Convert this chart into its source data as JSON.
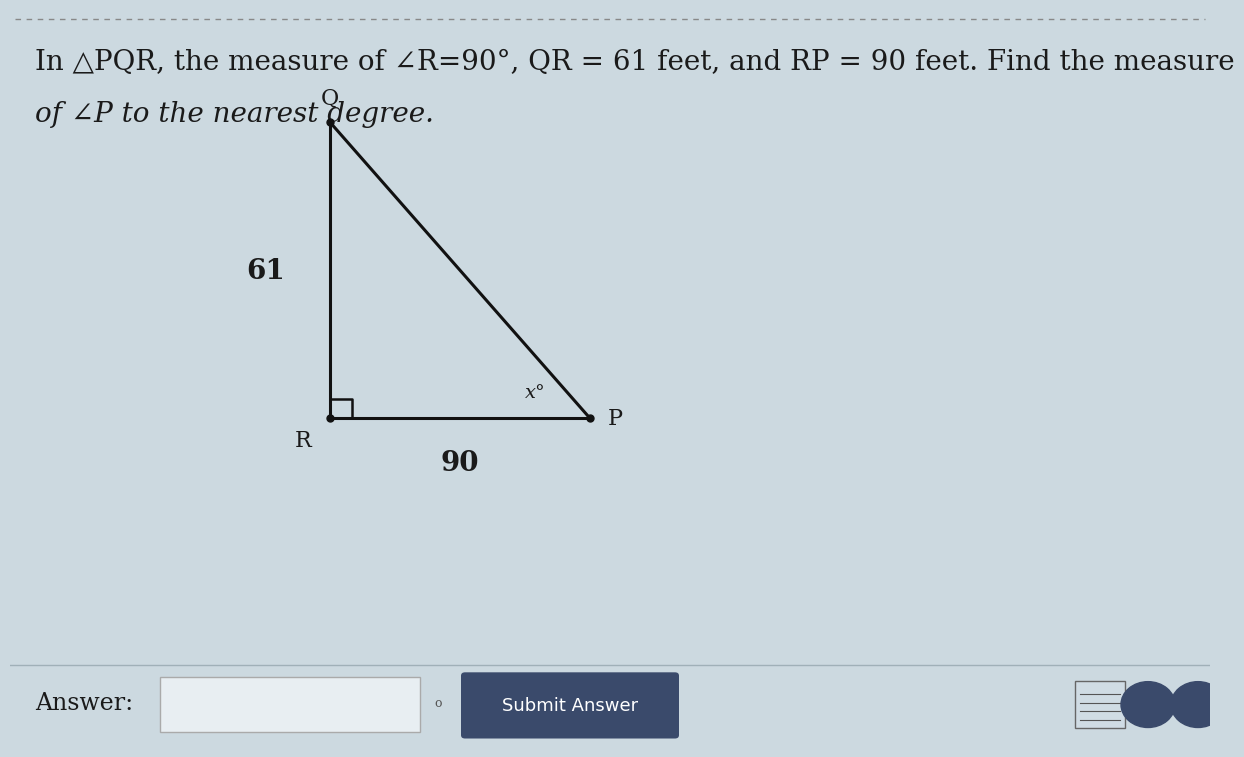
{
  "title_line1": "In △PQR, the measure of ∠R=90°, QR = 61 feet, and RP = 90 feet. Find the measure",
  "title_line2": "of ∠P to the nearest degree.",
  "bg_color": "#ccd9e0",
  "bottom_bg": "#c0cfd8",
  "triangle_R": [
    3.2,
    2.8
  ],
  "triangle_Q": [
    3.2,
    6.2
  ],
  "triangle_P": [
    5.8,
    2.8
  ],
  "label_R": "R",
  "label_Q": "Q",
  "label_P": "P",
  "side_QR": "61",
  "side_RP": "90",
  "angle_label": "x°",
  "answer_label": "Answer:",
  "submit_label": "Submit Answer",
  "line_color": "#111111",
  "dot_color": "#111111",
  "submit_bg": "#3a4a6b",
  "submit_text_color": "#ffffff",
  "input_box_color": "#e8eef2",
  "font_size_title": 20,
  "font_size_labels": 16,
  "font_size_side": 20,
  "font_size_answer": 17,
  "dash_color": "#888888"
}
